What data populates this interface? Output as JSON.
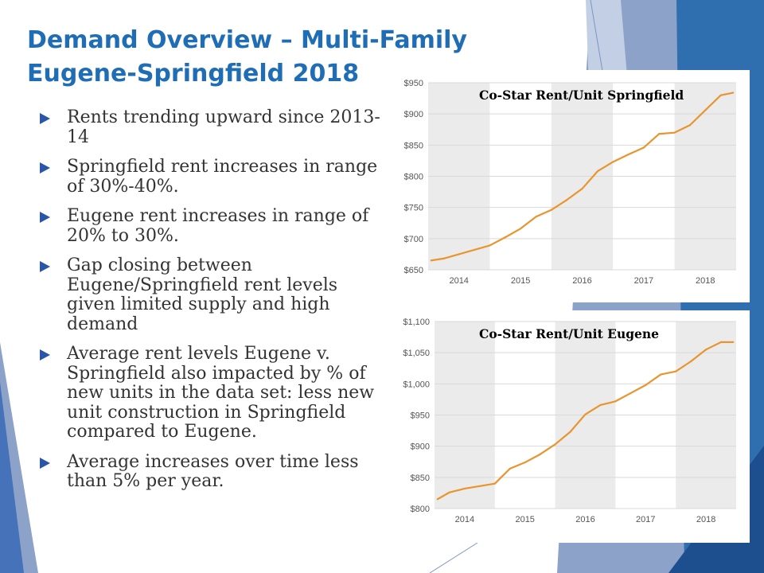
{
  "title": {
    "line1": "Demand Overview – Multi-Family",
    "line2": "Eugene-Springfield 2018"
  },
  "bullets": [
    "Rents trending upward since 2013-14",
    "Springfield rent increases in range of 30%-40%.",
    "Eugene rent increases in range of 20% to 30%.",
    "Gap closing between Eugene/Springfield rent levels given limited supply and high demand",
    "Average rent levels Eugene v. Springfield also impacted by % of new units in the data set: less new unit construction in Springfield compared to Eugene.",
    "Average increases over time less than 5% per year."
  ],
  "colors": {
    "title": "#1f6eb5",
    "bullet": "#2a55a8",
    "body_text": "#333333",
    "line": "#e8952e",
    "band": "#ebebeb"
  },
  "chart_data": [
    {
      "type": "line",
      "title": "Co-Star Rent/Unit Springfield",
      "ylim": [
        650,
        950
      ],
      "yticks": [
        650,
        700,
        750,
        800,
        850,
        900,
        950
      ],
      "ytick_labels": [
        "$650",
        "$700",
        "$750",
        "$800",
        "$850",
        "$900",
        "$950"
      ],
      "xlim": [
        2013.5,
        2018.5
      ],
      "xtick_labels": [
        "2014",
        "2015",
        "2016",
        "2017",
        "2018"
      ],
      "shaded_years": [
        2014,
        2016,
        2018
      ],
      "x": [
        2013.55,
        2013.75,
        2014.0,
        2014.25,
        2014.5,
        2014.75,
        2015.0,
        2015.25,
        2015.5,
        2015.75,
        2016.0,
        2016.25,
        2016.5,
        2016.75,
        2017.0,
        2017.25,
        2017.5,
        2017.75,
        2018.0,
        2018.25,
        2018.45
      ],
      "y": [
        665,
        668,
        675,
        682,
        689,
        702,
        716,
        735,
        746,
        762,
        780,
        808,
        823,
        835,
        846,
        868,
        870,
        882,
        906,
        930,
        934
      ]
    },
    {
      "type": "line",
      "title": "Co-Star Rent/Unit Eugene",
      "ylim": [
        800,
        1100
      ],
      "yticks": [
        800,
        850,
        900,
        950,
        1000,
        1050,
        1100
      ],
      "ytick_labels": [
        "$800",
        "$850",
        "$900",
        "$950",
        "$1,000",
        "$1,050",
        "$1,100"
      ],
      "xlim": [
        2013.5,
        2018.5
      ],
      "xtick_labels": [
        "2014",
        "2015",
        "2016",
        "2017",
        "2018"
      ],
      "shaded_years": [
        2014,
        2016,
        2018
      ],
      "x": [
        2013.55,
        2013.75,
        2014.0,
        2014.25,
        2014.5,
        2014.75,
        2015.0,
        2015.25,
        2015.5,
        2015.75,
        2016.0,
        2016.25,
        2016.5,
        2016.75,
        2017.0,
        2017.25,
        2017.5,
        2017.75,
        2018.0,
        2018.25,
        2018.45
      ],
      "y": [
        815,
        826,
        832,
        836,
        840,
        864,
        874,
        887,
        903,
        923,
        951,
        966,
        972,
        985,
        998,
        1015,
        1020,
        1036,
        1055,
        1067,
        1067
      ]
    }
  ]
}
